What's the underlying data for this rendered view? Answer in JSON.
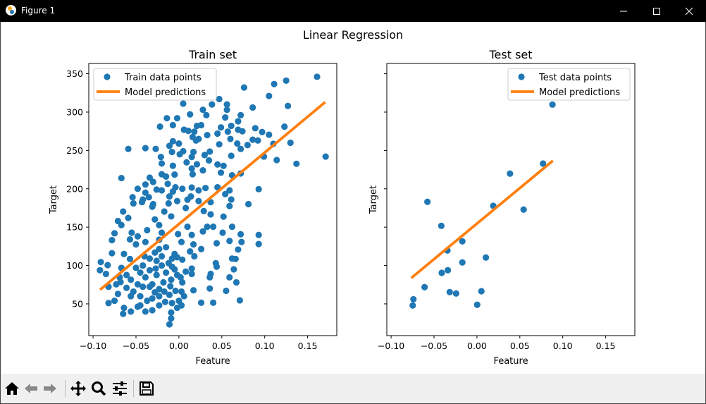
{
  "window": {
    "title": "Figure 1"
  },
  "figure": {
    "suptitle": "Linear Regression"
  },
  "toolbar": {
    "buttons": [
      "home-icon",
      "back-icon",
      "forward-icon",
      "pan-icon",
      "zoom-icon",
      "configure-subplots-icon",
      "save-icon"
    ]
  },
  "colors": {
    "points": "#1f77b4",
    "line": "#ff7f0e"
  },
  "chart_data": [
    {
      "type": "scatter",
      "title": "Train set",
      "xlabel": "Feature",
      "ylabel": "Target",
      "xlim": [
        -0.105,
        0.184
      ],
      "ylim": [
        8.6,
        363.4
      ],
      "xticks": [
        -0.1,
        -0.05,
        0.0,
        0.05,
        0.1,
        0.15
      ],
      "xtick_labels": [
        "−0.10",
        "−0.05",
        "0.00",
        "0.05",
        "0.10",
        "0.15"
      ],
      "yticks": [
        50,
        100,
        150,
        200,
        250,
        300,
        350
      ],
      "ytick_labels": [
        "50",
        "100",
        "150",
        "200",
        "250",
        "300",
        "350"
      ],
      "legend": {
        "placement": "upper-left",
        "entries": [
          "Train data points",
          "Model predictions"
        ]
      },
      "line": {
        "name": "Model predictions",
        "x": [
          -0.0918,
          0.1705
        ],
        "y": [
          68.4,
          313.0
        ]
      },
      "points": [
        [
          0.161,
          346
        ],
        [
          0.125,
          341
        ],
        [
          0.111,
          336.5
        ],
        [
          0.076,
          332
        ],
        [
          0.105,
          321
        ],
        [
          0.127,
          308
        ],
        [
          0.086,
          306
        ],
        [
          0.047,
          317
        ],
        [
          0.005,
          311
        ],
        [
          0.0385,
          310
        ],
        [
          0.056,
          310
        ],
        [
          0.028,
          303
        ],
        [
          0.013,
          297
        ],
        [
          0.032,
          296
        ],
        [
          0.056,
          303
        ],
        [
          0.072,
          296
        ],
        [
          0.054,
          293
        ],
        [
          -0.014,
          292
        ],
        [
          -0.002,
          292
        ],
        [
          0.069,
          288
        ],
        [
          -0.022,
          281
        ],
        [
          -0.007,
          283
        ],
        [
          0.021,
          282
        ],
        [
          0.026,
          283
        ],
        [
          0.049,
          280
        ],
        [
          0.061,
          282
        ],
        [
          0.123,
          281
        ],
        [
          0.089,
          279
        ],
        [
          0.006,
          277
        ],
        [
          0.011,
          275.5
        ],
        [
          0.018,
          274.5
        ],
        [
          0.057,
          274.5
        ],
        [
          0.069,
          277
        ],
        [
          0.074,
          275
        ],
        [
          0.097,
          274
        ],
        [
          0.045,
          272
        ],
        [
          0.033,
          270
        ],
        [
          0.105,
          270.5
        ],
        [
          0.171,
          242
        ],
        [
          0.016,
          267.5
        ],
        [
          0.023,
          265
        ],
        [
          0.06,
          265
        ],
        [
          -0.007,
          262
        ],
        [
          0.0,
          259
        ],
        [
          0.02,
          263
        ],
        [
          0.092,
          263
        ],
        [
          0.086,
          264
        ],
        [
          0.13,
          260
        ],
        [
          0.11,
          258.6
        ],
        [
          -0.059,
          252
        ],
        [
          -0.039,
          253
        ],
        [
          -0.027,
          252
        ],
        [
          -0.011,
          256
        ],
        [
          0.047,
          258
        ],
        [
          0.068,
          259
        ],
        [
          0.08,
          257
        ],
        [
          0.072,
          252
        ],
        [
          -0.008,
          248
        ],
        [
          0.005,
          249
        ],
        [
          0.017,
          248
        ],
        [
          0.036,
          248.5
        ],
        [
          -0.021,
          241.5
        ],
        [
          0.001,
          245
        ],
        [
          0.015,
          241.5
        ],
        [
          0.03,
          244
        ],
        [
          0.061,
          243
        ],
        [
          0.099,
          242
        ],
        [
          0.114,
          237.5
        ],
        [
          0.137,
          232.6
        ],
        [
          -0.02,
          233
        ],
        [
          -0.007,
          230
        ],
        [
          0.009,
          234.5
        ],
        [
          0.021,
          232
        ],
        [
          0.035,
          237
        ],
        [
          0.045,
          231.7
        ],
        [
          0.052,
          229.9
        ],
        [
          0.015,
          226.5
        ],
        [
          0.028,
          224
        ],
        [
          -0.067,
          214
        ],
        [
          -0.034,
          214.5
        ],
        [
          -0.02,
          219
        ],
        [
          -0.015,
          216
        ],
        [
          -0.005,
          218.5
        ],
        [
          0.016,
          219
        ],
        [
          0.049,
          221
        ],
        [
          0.062,
          217.6
        ],
        [
          0.072,
          220
        ],
        [
          -0.048,
          200
        ],
        [
          -0.039,
          205.6
        ],
        [
          -0.03,
          209
        ],
        [
          -0.026,
          199
        ],
        [
          -0.013,
          206.5
        ],
        [
          -0.004,
          202
        ],
        [
          0.004,
          200
        ],
        [
          0.015,
          201.6
        ],
        [
          0.031,
          201
        ],
        [
          0.045,
          202
        ],
        [
          0.093,
          199.5
        ],
        [
          -0.054,
          189
        ],
        [
          -0.042,
          186
        ],
        [
          -0.035,
          189
        ],
        [
          -0.011,
          190
        ],
        [
          0.014,
          190
        ],
        [
          0.054,
          193
        ],
        [
          0.061,
          186
        ],
        [
          -0.053,
          181
        ],
        [
          -0.043,
          182.6
        ],
        [
          -0.03,
          180
        ],
        [
          -0.012,
          181
        ],
        [
          -0.002,
          184
        ],
        [
          0.01,
          185.8
        ],
        [
          0.023,
          184
        ],
        [
          0.037,
          182.6
        ],
        [
          -0.02,
          198
        ],
        [
          -0.007,
          196.4
        ],
        [
          0.023,
          198
        ],
        [
          0.059,
          198
        ],
        [
          -0.039,
          195
        ],
        [
          -0.065,
          170.4
        ],
        [
          -0.059,
          162
        ],
        [
          -0.071,
          158
        ],
        [
          -0.067,
          152.7
        ],
        [
          -0.031,
          176.6
        ],
        [
          -0.017,
          170.4
        ],
        [
          -0.009,
          164
        ],
        [
          -0.028,
          160
        ],
        [
          -0.023,
          152.7
        ],
        [
          0.008,
          175
        ],
        [
          0.029,
          171
        ],
        [
          0.037,
          166.7
        ],
        [
          0.052,
          163.7
        ],
        [
          0.059,
          177.5
        ],
        [
          0.081,
          180
        ],
        [
          0.062,
          150.5
        ],
        [
          0.033,
          150.5
        ],
        [
          0.01,
          150.5
        ],
        [
          -0.001,
          141
        ],
        [
          -0.037,
          146
        ],
        [
          -0.055,
          142.8
        ],
        [
          -0.075,
          142
        ],
        [
          -0.078,
          133
        ],
        [
          -0.048,
          138
        ],
        [
          -0.057,
          134
        ],
        [
          -0.05,
          127.5
        ],
        [
          -0.039,
          130.6
        ],
        [
          -0.015,
          123.8
        ],
        [
          -0.005,
          115
        ],
        [
          0.003,
          130.6
        ],
        [
          0.015,
          139.8
        ],
        [
          0.017,
          127.5
        ],
        [
          0.028,
          144.4
        ],
        [
          0.04,
          150.5
        ],
        [
          0.044,
          129
        ],
        [
          0.051,
          142.8
        ],
        [
          0.059,
          132
        ],
        [
          0.072,
          140.7
        ],
        [
          0.073,
          130.6
        ],
        [
          0.069,
          120.8
        ],
        [
          0.093,
          139.8
        ],
        [
          0.093,
          128
        ],
        [
          0.026,
          121.4
        ],
        [
          0.013,
          118.3
        ],
        [
          0.018,
          112
        ],
        [
          0.004,
          107.6
        ],
        [
          -0.002,
          110.7
        ],
        [
          -0.078,
          116
        ],
        [
          -0.064,
          115
        ],
        [
          -0.057,
          108.5
        ],
        [
          -0.091,
          104.5
        ],
        [
          -0.083,
          100.5
        ],
        [
          -0.092,
          93.8
        ],
        [
          -0.085,
          89
        ],
        [
          -0.067,
          96.9
        ],
        [
          -0.082,
          72.3
        ],
        [
          -0.073,
          75.5
        ],
        [
          -0.061,
          70.9
        ],
        [
          -0.056,
          60
        ],
        [
          -0.071,
          63
        ],
        [
          -0.082,
          51
        ],
        [
          -0.075,
          54
        ],
        [
          -0.064,
          44.8
        ],
        [
          -0.065,
          37
        ],
        [
          -0.056,
          40
        ],
        [
          -0.048,
          46.3
        ],
        [
          -0.039,
          40
        ],
        [
          -0.031,
          41.7
        ],
        [
          -0.037,
          54
        ],
        [
          -0.023,
          48
        ],
        [
          -0.016,
          52.5
        ],
        [
          -0.008,
          51
        ],
        [
          -0.011,
          23.3
        ],
        [
          -0.009,
          31
        ],
        [
          -0.009,
          38.7
        ],
        [
          -0.002,
          44.8
        ],
        [
          0.003,
          48
        ],
        [
          0.0,
          54
        ],
        [
          0.006,
          60
        ],
        [
          0.003,
          66
        ],
        [
          -0.004,
          67
        ],
        [
          -0.011,
          61.7
        ],
        [
          0.017,
          67.7
        ],
        [
          0.026,
          51.5
        ],
        [
          0.04,
          51.5
        ],
        [
          0.036,
          70
        ],
        [
          0.055,
          67
        ],
        [
          0.071,
          54.6
        ],
        [
          0.067,
          78
        ],
        [
          0.059,
          84.6
        ],
        [
          0.064,
          95
        ],
        [
          0.036,
          84.6
        ],
        [
          0.037,
          89
        ],
        [
          0.015,
          89
        ],
        [
          0.015,
          96
        ],
        [
          0.002,
          84.6
        ],
        [
          0.044,
          98.4
        ],
        [
          0.043,
          103
        ],
        [
          0.062,
          109
        ],
        [
          0.066,
          108.5
        ],
        [
          -0.05,
          97
        ],
        [
          -0.045,
          90.7
        ],
        [
          -0.039,
          84.6
        ],
        [
          -0.034,
          93.8
        ],
        [
          -0.026,
          87.7
        ],
        [
          -0.02,
          100
        ],
        [
          -0.015,
          90.7
        ],
        [
          -0.009,
          81.5
        ],
        [
          -0.031,
          75.5
        ],
        [
          -0.042,
          72.3
        ],
        [
          -0.048,
          75.5
        ],
        [
          -0.023,
          69.3
        ],
        [
          -0.034,
          109
        ],
        [
          -0.026,
          106
        ],
        [
          -0.02,
          112
        ],
        [
          -0.042,
          100
        ],
        [
          -0.031,
          57
        ],
        [
          -0.023,
          60
        ],
        [
          -0.017,
          66
        ],
        [
          -0.061,
          87.7
        ],
        [
          -0.069,
          84.6
        ],
        [
          -0.068,
          78.5
        ],
        [
          -0.056,
          81.5
        ],
        [
          -0.053,
          66
        ],
        [
          -0.045,
          60
        ],
        [
          -0.028,
          116.8
        ],
        [
          -0.023,
          121.4
        ],
        [
          -0.02,
          142.8
        ],
        [
          -0.023,
          133.6
        ],
        [
          -0.008,
          109
        ],
        [
          -0.008,
          98.4
        ],
        [
          -0.002,
          87.7
        ],
        [
          -0.034,
          72.3
        ],
        [
          -0.012,
          103
        ],
        [
          -0.005,
          95
        ],
        [
          -0.018,
          78
        ],
        [
          -0.027,
          96
        ],
        [
          -0.04,
          112
        ],
        [
          -0.01,
          73
        ],
        [
          0.008,
          92
        ],
        [
          0.004,
          78
        ],
        [
          -0.028,
          65
        ],
        [
          -0.045,
          48
        ]
      ]
    },
    {
      "type": "scatter",
      "title": "Test set",
      "xlabel": "Feature",
      "ylabel": "Target",
      "xlim": [
        -0.105,
        0.184
      ],
      "ylim": [
        8.6,
        363.4
      ],
      "xticks": [
        -0.1,
        -0.05,
        0.0,
        0.05,
        0.1,
        0.15
      ],
      "xtick_labels": [
        "−0.10",
        "−0.05",
        "0.00",
        "0.05",
        "0.10",
        "0.15"
      ],
      "yticks": [
        50,
        100,
        150,
        200,
        250,
        300,
        350
      ],
      "ytick_labels": [],
      "legend": {
        "placement": "upper-right",
        "entries": [
          "Test data points",
          "Model predictions"
        ]
      },
      "line": {
        "name": "Model predictions",
        "x": [
          -0.0765,
          0.0885
        ],
        "y": [
          83.7,
          236.6
        ]
      },
      "points": [
        [
          -0.0748,
          47.9
        ],
        [
          -0.074,
          56
        ],
        [
          -0.061,
          71.8
        ],
        [
          -0.0577,
          183
        ],
        [
          -0.0415,
          151.7
        ],
        [
          -0.0344,
          119.6
        ],
        [
          -0.041,
          90.4
        ],
        [
          -0.0339,
          93.8
        ],
        [
          -0.0317,
          65.3
        ],
        [
          -0.0243,
          63.5
        ],
        [
          -0.017,
          131.5
        ],
        [
          -0.017,
          104
        ],
        [
          0.0003,
          48.8
        ],
        [
          0.0052,
          66.5
        ],
        [
          0.0104,
          110.4
        ],
        [
          0.019,
          177.8
        ],
        [
          0.0385,
          219.8
        ],
        [
          0.0544,
          172.9
        ],
        [
          0.077,
          232.9
        ],
        [
          0.088,
          309.8
        ]
      ]
    }
  ]
}
